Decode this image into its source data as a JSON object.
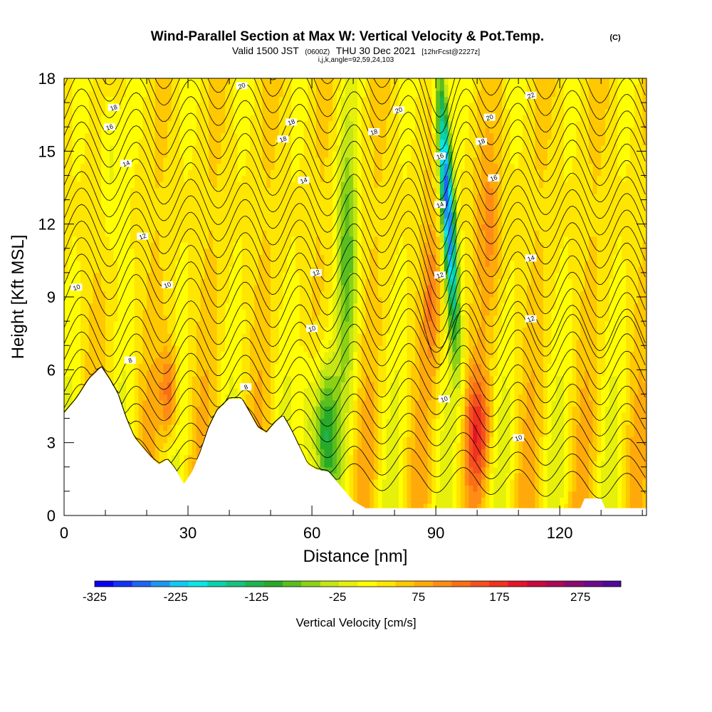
{
  "header": {
    "title": "Wind-Parallel Section at Max W: Vertical Velocity & Pot.Temp.",
    "copyright": "(C)",
    "valid_prefix": "Valid 1500 JST",
    "valid_z": "(0600Z)",
    "valid_date": "THU 30 Dec 2021",
    "forecast": "[12hrFcst@2227z]",
    "indices": "i,j,k,angle=92,59,24,103"
  },
  "chart_data": {
    "type": "heatmap",
    "xlabel": "Distance [nm]",
    "ylabel": "Height [Kft MSL]",
    "xlim": [
      0,
      141
    ],
    "ylim": [
      0,
      18
    ],
    "x_ticks": [
      "0",
      "30",
      "60",
      "90",
      "120"
    ],
    "x_tick_values": [
      0,
      30,
      60,
      90,
      120
    ],
    "y_ticks": [
      "0",
      "3",
      "6",
      "9",
      "12",
      "15",
      "18"
    ],
    "y_tick_values": [
      0,
      3,
      6,
      9,
      12,
      15,
      18
    ],
    "terrain_height_kft": [
      [
        0,
        4.2
      ],
      [
        3,
        4.8
      ],
      [
        6,
        5.6
      ],
      [
        9,
        6.1
      ],
      [
        11,
        5.6
      ],
      [
        13,
        5.0
      ],
      [
        15,
        4.0
      ],
      [
        17,
        3.2
      ],
      [
        19,
        2.8
      ],
      [
        21,
        2.4
      ],
      [
        23,
        2.1
      ],
      [
        25,
        2.3
      ],
      [
        27,
        1.9
      ],
      [
        29,
        1.3
      ],
      [
        31,
        1.8
      ],
      [
        33,
        2.6
      ],
      [
        35,
        3.6
      ],
      [
        37,
        4.3
      ],
      [
        40,
        4.8
      ],
      [
        43,
        4.8
      ],
      [
        45,
        4.2
      ],
      [
        47,
        3.6
      ],
      [
        49,
        3.4
      ],
      [
        51,
        3.8
      ],
      [
        53,
        4.1
      ],
      [
        55,
        3.5
      ],
      [
        57,
        2.8
      ],
      [
        59,
        2.1
      ],
      [
        61,
        1.9
      ],
      [
        64,
        1.8
      ],
      [
        67,
        1.2
      ],
      [
        70,
        0.6
      ],
      [
        73,
        0.3
      ],
      [
        76,
        0.3
      ],
      [
        100,
        0.3
      ],
      [
        125,
        0.3
      ],
      [
        126,
        0.7
      ],
      [
        130,
        0.7
      ],
      [
        131,
        0.3
      ],
      [
        141,
        0.3
      ]
    ],
    "colorbar": {
      "label": "Vertical Velocity [cm/s]",
      "tick_labels": [
        "-325",
        "-225",
        "-125",
        "-25",
        "75",
        "175",
        "275"
      ],
      "tick_values": [
        -325,
        -225,
        -125,
        -25,
        75,
        175,
        275
      ],
      "range": [
        -325,
        325
      ],
      "colors": [
        "#0a00f0",
        "#1432f5",
        "#1e64f5",
        "#1e96f0",
        "#14c8f5",
        "#0ae6e6",
        "#0ad2aa",
        "#14c37d",
        "#1eb450",
        "#28aa28",
        "#5abe1e",
        "#8cd214",
        "#c3e614",
        "#e6f00a",
        "#ffff00",
        "#ffe600",
        "#ffc800",
        "#ffaa0a",
        "#ff8c14",
        "#fa6e14",
        "#f5501e",
        "#f0321e",
        "#e61428",
        "#c80a3c",
        "#aa0a55",
        "#8c0a6e",
        "#6e0a8c",
        "#500a96"
      ]
    },
    "theta_contour_labels": [
      "8",
      "10",
      "12",
      "14",
      "16",
      "18",
      "20",
      "22"
    ],
    "contour_labels": [
      {
        "x": 11,
        "y": 16.0,
        "text": "16"
      },
      {
        "x": 12,
        "y": 16.8,
        "text": "18"
      },
      {
        "x": 15,
        "y": 14.5,
        "text": "14"
      },
      {
        "x": 19,
        "y": 11.5,
        "text": "12"
      },
      {
        "x": 3,
        "y": 9.4,
        "text": "10"
      },
      {
        "x": 25,
        "y": 9.5,
        "text": "10"
      },
      {
        "x": 16,
        "y": 6.4,
        "text": "8"
      },
      {
        "x": 44,
        "y": 5.3,
        "text": "8"
      },
      {
        "x": 53,
        "y": 15.5,
        "text": "18"
      },
      {
        "x": 55,
        "y": 16.2,
        "text": "18"
      },
      {
        "x": 43,
        "y": 17.7,
        "text": "20"
      },
      {
        "x": 58,
        "y": 13.8,
        "text": "14"
      },
      {
        "x": 61,
        "y": 10.0,
        "text": "12"
      },
      {
        "x": 60,
        "y": 7.7,
        "text": "10"
      },
      {
        "x": 75,
        "y": 15.8,
        "text": "18"
      },
      {
        "x": 81,
        "y": 16.7,
        "text": "20"
      },
      {
        "x": 91,
        "y": 14.8,
        "text": "16"
      },
      {
        "x": 91,
        "y": 12.8,
        "text": "14"
      },
      {
        "x": 91,
        "y": 9.9,
        "text": "12"
      },
      {
        "x": 92,
        "y": 4.8,
        "text": "10"
      },
      {
        "x": 103,
        "y": 16.4,
        "text": "20"
      },
      {
        "x": 101,
        "y": 15.4,
        "text": "18"
      },
      {
        "x": 104,
        "y": 13.9,
        "text": "16"
      },
      {
        "x": 113,
        "y": 17.3,
        "text": "22"
      },
      {
        "x": 113,
        "y": 10.6,
        "text": "14"
      },
      {
        "x": 113,
        "y": 8.1,
        "text": "12"
      },
      {
        "x": 110,
        "y": 3.2,
        "text": "10"
      }
    ]
  }
}
